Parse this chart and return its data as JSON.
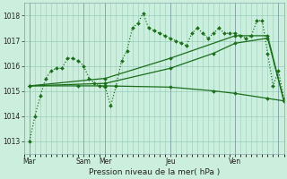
{
  "bg_color": "#cceedd",
  "grid_color": "#99ccbb",
  "line_color": "#1a6e1a",
  "xlabel": "Pression niveau de la mer( hPa )",
  "ylim": [
    1012.5,
    1018.5
  ],
  "yticks": [
    1013,
    1014,
    1015,
    1016,
    1017,
    1018
  ],
  "xlim": [
    0,
    96
  ],
  "day_ticks": [
    2,
    22,
    30,
    54,
    78,
    94
  ],
  "day_labels": [
    "Mar",
    "Sam",
    "Mer",
    "Jeu",
    "Ven",
    ""
  ],
  "series_dotted": {
    "x": [
      2,
      4,
      6,
      8,
      10,
      12,
      14,
      16,
      18,
      20,
      22,
      24,
      26,
      28,
      30,
      32,
      34,
      36,
      38,
      40,
      42,
      44,
      46,
      48,
      50,
      52,
      54,
      56,
      58,
      60,
      62,
      64,
      66,
      68,
      70,
      72,
      74,
      76,
      78,
      80,
      82,
      84,
      86,
      88,
      90,
      92,
      94,
      96
    ],
    "y": [
      1013.0,
      1014.0,
      1014.8,
      1015.5,
      1015.8,
      1015.9,
      1015.9,
      1016.3,
      1016.3,
      1016.2,
      1016.0,
      1015.5,
      1015.3,
      1015.2,
      1015.15,
      1014.4,
      1015.2,
      1016.2,
      1016.6,
      1017.5,
      1017.7,
      1018.1,
      1017.5,
      1017.4,
      1017.3,
      1017.2,
      1017.1,
      1017.0,
      1016.9,
      1016.8,
      1017.3,
      1017.5,
      1017.3,
      1017.1,
      1017.3,
      1017.5,
      1017.3,
      1017.3,
      1017.3,
      1017.2,
      1017.1,
      1017.2,
      1017.8,
      1017.8,
      1016.5,
      1015.2,
      1015.8,
      1014.7
    ]
  },
  "series_flat": {
    "x": [
      2,
      20,
      30,
      54,
      70,
      78,
      90,
      96
    ],
    "y": [
      1015.2,
      1015.2,
      1015.2,
      1015.15,
      1015.0,
      1014.9,
      1014.7,
      1014.6
    ]
  },
  "series_rise1": {
    "x": [
      2,
      30,
      54,
      70,
      78,
      90,
      96
    ],
    "y": [
      1015.2,
      1015.3,
      1015.9,
      1016.5,
      1016.9,
      1017.1,
      1014.6
    ]
  },
  "series_rise2": {
    "x": [
      2,
      30,
      54,
      78,
      90,
      96
    ],
    "y": [
      1015.2,
      1015.5,
      1016.3,
      1017.2,
      1017.2,
      1014.6
    ]
  }
}
